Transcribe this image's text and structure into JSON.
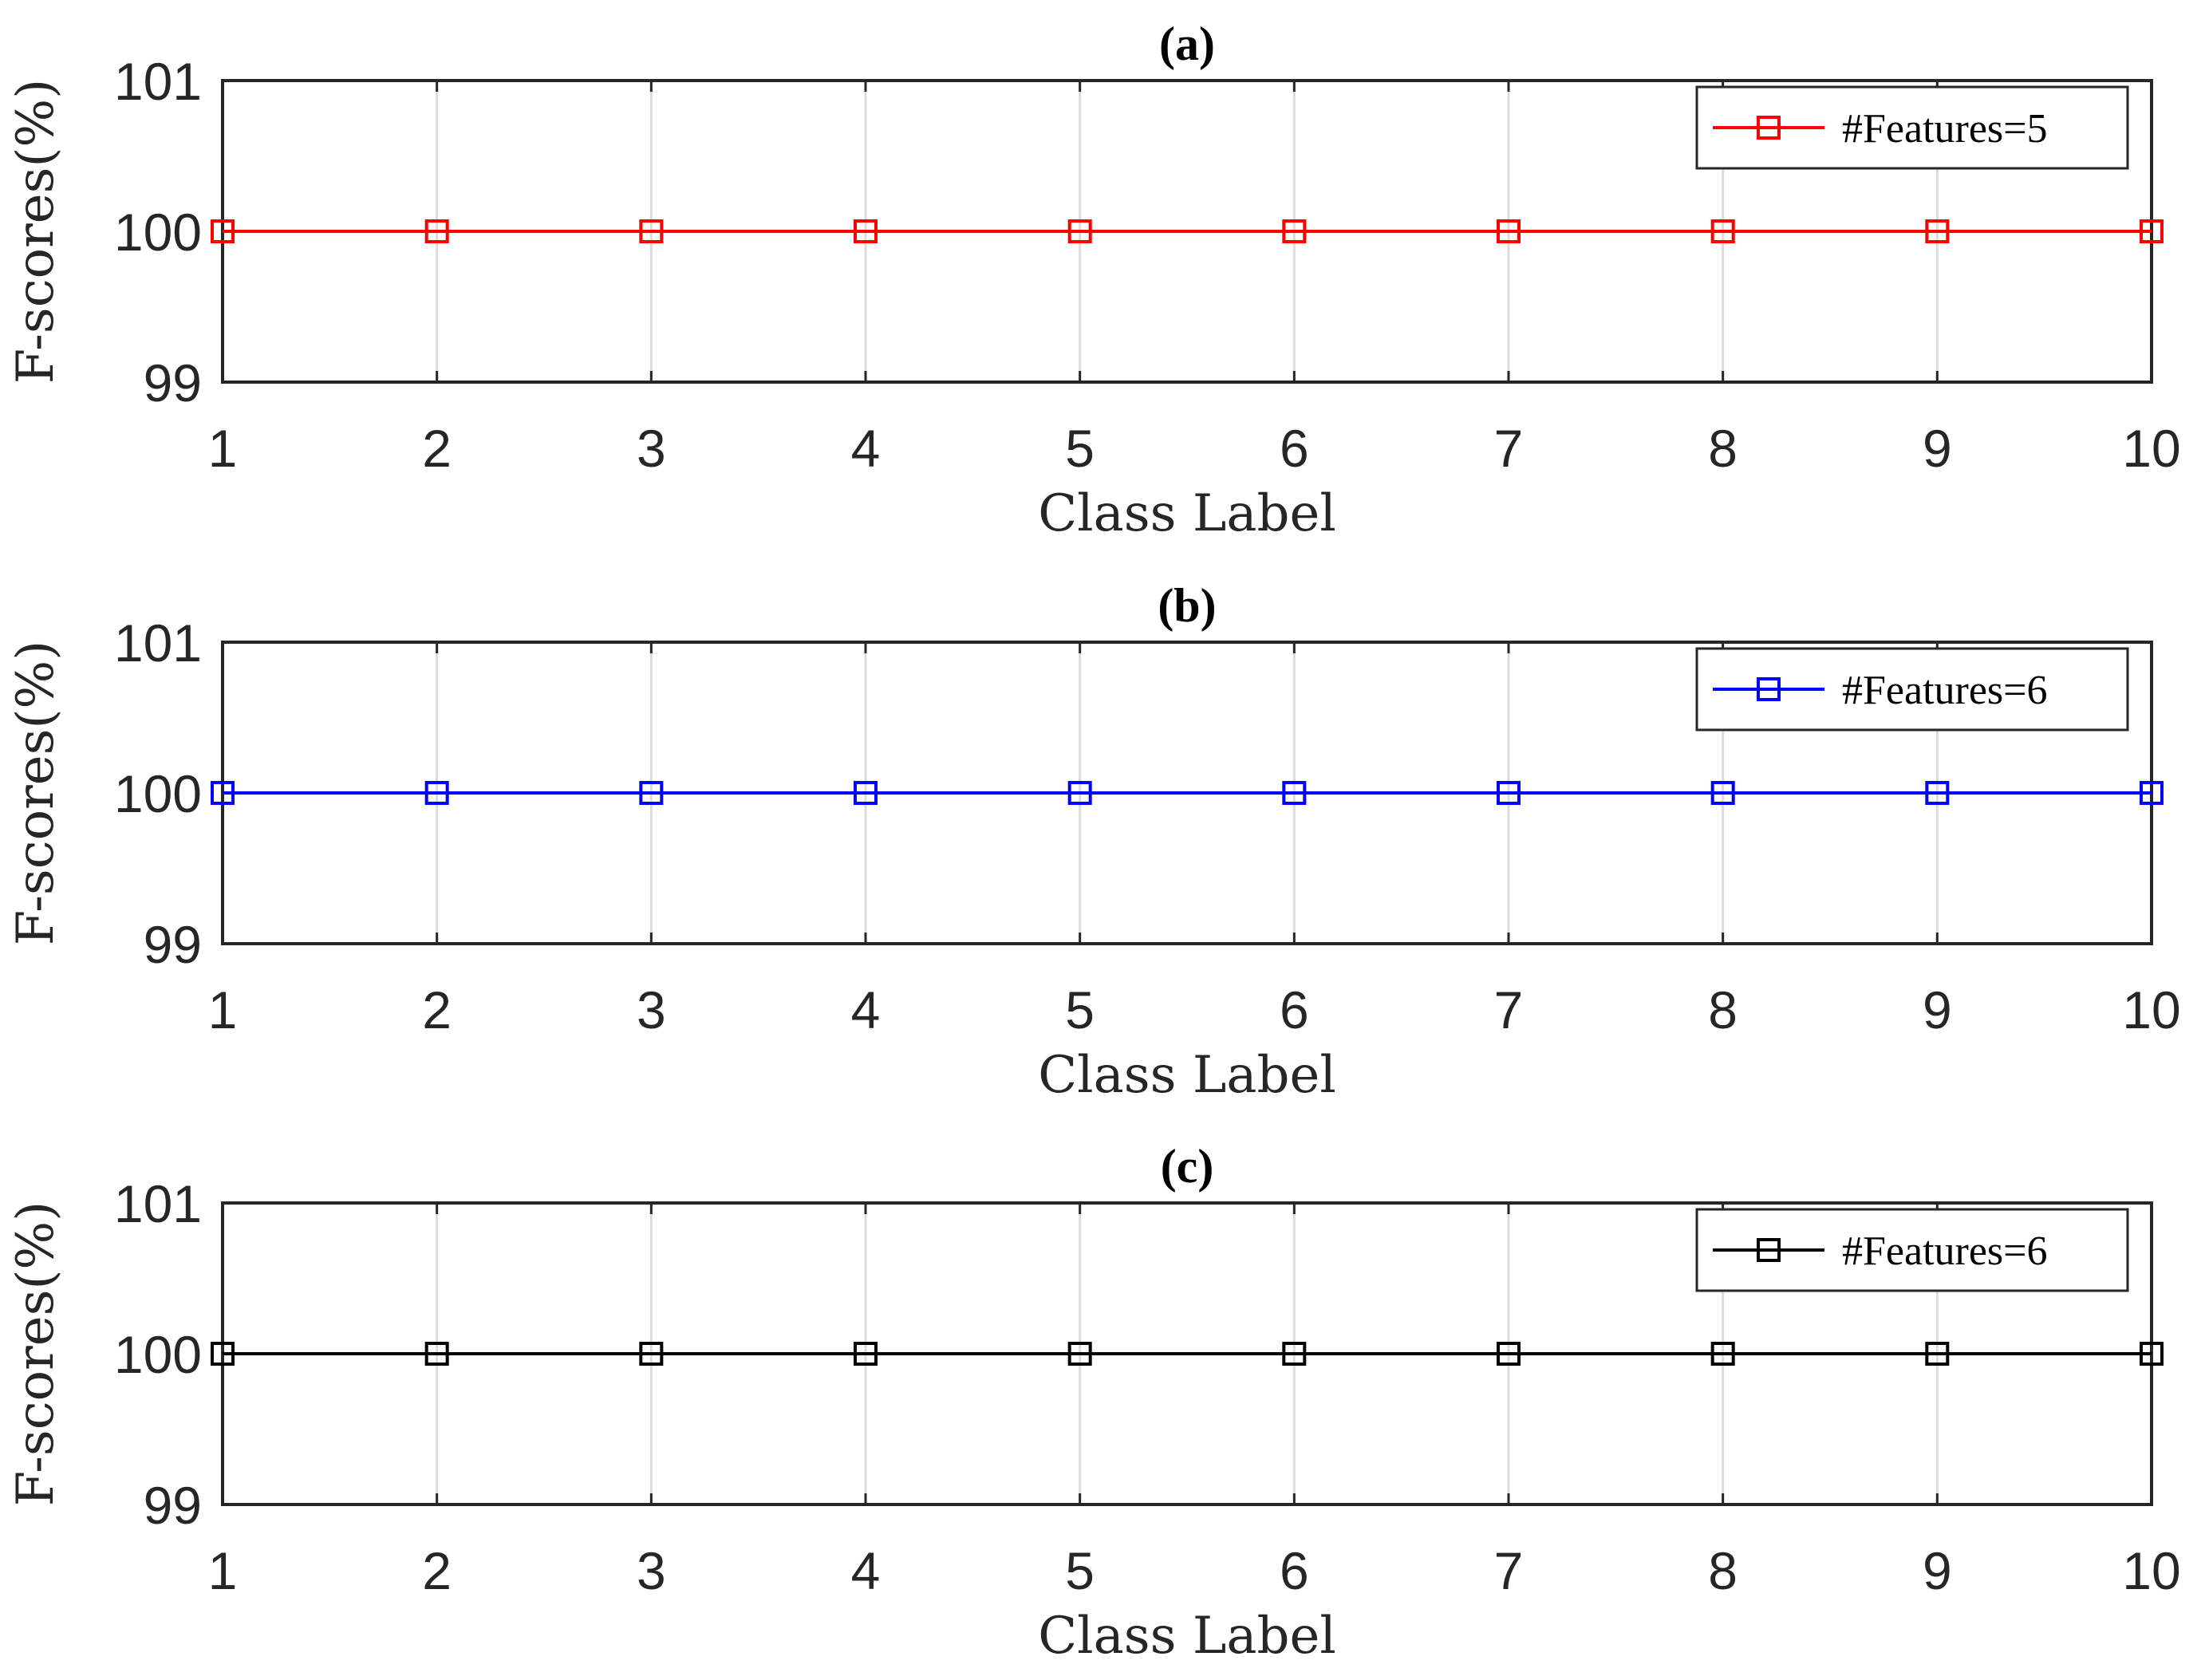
{
  "chart_data": [
    {
      "type": "line",
      "title": "(a)",
      "xlabel": "Class Label",
      "ylabel": "F-scores(%)",
      "x": [
        1,
        2,
        3,
        4,
        5,
        6,
        7,
        8,
        9,
        10
      ],
      "xlim": [
        1,
        10
      ],
      "ylim": [
        99,
        101
      ],
      "xticks": [
        "1",
        "2",
        "3",
        "4",
        "5",
        "6",
        "7",
        "8",
        "9",
        "10"
      ],
      "yticks": [
        "99",
        "100",
        "101"
      ],
      "grid": "vertical",
      "legend_position": "top-right",
      "series": [
        {
          "name": "#Features=5",
          "color": "#ff0000",
          "marker": "square",
          "values": [
            100,
            100,
            100,
            100,
            100,
            100,
            100,
            100,
            100,
            100
          ]
        }
      ]
    },
    {
      "type": "line",
      "title": "(b)",
      "xlabel": "Class Label",
      "ylabel": "F-scores(%)",
      "x": [
        1,
        2,
        3,
        4,
        5,
        6,
        7,
        8,
        9,
        10
      ],
      "xlim": [
        1,
        10
      ],
      "ylim": [
        99,
        101
      ],
      "xticks": [
        "1",
        "2",
        "3",
        "4",
        "5",
        "6",
        "7",
        "8",
        "9",
        "10"
      ],
      "yticks": [
        "99",
        "100",
        "101"
      ],
      "grid": "vertical",
      "legend_position": "top-right",
      "series": [
        {
          "name": "#Features=6",
          "color": "#0000ff",
          "marker": "square",
          "values": [
            100,
            100,
            100,
            100,
            100,
            100,
            100,
            100,
            100,
            100
          ]
        }
      ]
    },
    {
      "type": "line",
      "title": "(c)",
      "xlabel": "Class Label",
      "ylabel": "F-scores(%)",
      "x": [
        1,
        2,
        3,
        4,
        5,
        6,
        7,
        8,
        9,
        10
      ],
      "xlim": [
        1,
        10
      ],
      "ylim": [
        99,
        101
      ],
      "xticks": [
        "1",
        "2",
        "3",
        "4",
        "5",
        "6",
        "7",
        "8",
        "9",
        "10"
      ],
      "yticks": [
        "99",
        "100",
        "101"
      ],
      "grid": "vertical",
      "legend_position": "top-right",
      "series": [
        {
          "name": "#Features=6",
          "color": "#000000",
          "marker": "square",
          "values": [
            100,
            100,
            100,
            100,
            100,
            100,
            100,
            100,
            100,
            100
          ]
        }
      ]
    }
  ]
}
